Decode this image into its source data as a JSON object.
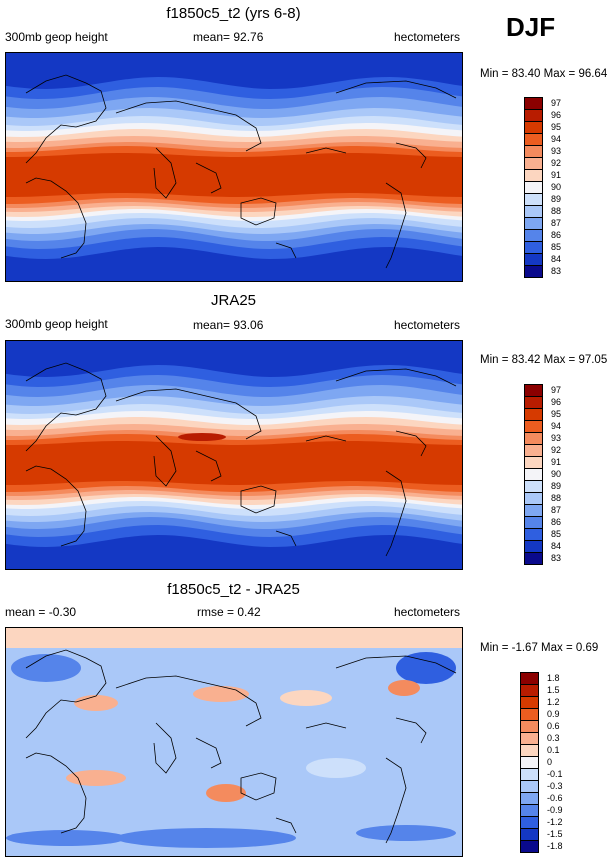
{
  "season": "DJF",
  "chart_data": [
    {
      "type": "heatmap",
      "title": "f1850c5_t2 (yrs 6-8)",
      "left_label": "300mb geop height",
      "center_label": "mean=  92.76",
      "right_label": "hectometers",
      "minmax": "Min =  83.40 Max =  96.64",
      "colorbar_levels": [
        "97",
        "96",
        "95",
        "94",
        "93",
        "92",
        "91",
        "90",
        "89",
        "88",
        "87",
        "86",
        "85",
        "84",
        "83"
      ],
      "colors": [
        "#8b0000",
        "#b81c00",
        "#d63a00",
        "#ec5d20",
        "#f48b5e",
        "#f9b090",
        "#fcd6c0",
        "#f4f4f8",
        "#cde0fb",
        "#aac8f8",
        "#7ea7f2",
        "#5584ea",
        "#2f5fe0",
        "#1438c4",
        "#0a0a8c"
      ]
    },
    {
      "type": "heatmap",
      "title": "JRA25",
      "left_label": "300mb geop height",
      "center_label": "mean=  93.06",
      "right_label": "hectometers",
      "minmax": "Min =  83.42 Max =  97.05",
      "colorbar_levels": [
        "97",
        "96",
        "95",
        "94",
        "93",
        "92",
        "91",
        "90",
        "89",
        "88",
        "87",
        "86",
        "85",
        "84",
        "83"
      ],
      "colors": [
        "#8b0000",
        "#b81c00",
        "#d63a00",
        "#ec5d20",
        "#f48b5e",
        "#f9b090",
        "#fcd6c0",
        "#f4f4f8",
        "#cde0fb",
        "#aac8f8",
        "#7ea7f2",
        "#5584ea",
        "#2f5fe0",
        "#1438c4",
        "#0a0a8c"
      ]
    },
    {
      "type": "heatmap",
      "title": "f1850c5_t2 - JRA25",
      "left_label": "mean =  -0.30",
      "center_label": "rmse =   0.42",
      "right_label": "hectometers",
      "minmax": "Min =  -1.67 Max =   0.69",
      "colorbar_levels": [
        "1.8",
        "1.5",
        "1.2",
        "0.9",
        "0.6",
        "0.3",
        "0.1",
        "0",
        "-0.1",
        "-0.3",
        "-0.6",
        "-0.9",
        "-1.2",
        "-1.5",
        "-1.8"
      ],
      "colors": [
        "#8b0000",
        "#b81c00",
        "#d63a00",
        "#ec5d20",
        "#f48b5e",
        "#f9b090",
        "#fcd6c0",
        "#f4f4f8",
        "#cde0fb",
        "#aac8f8",
        "#7ea7f2",
        "#5584ea",
        "#2f5fe0",
        "#1438c4",
        "#0a0a8c"
      ]
    }
  ]
}
